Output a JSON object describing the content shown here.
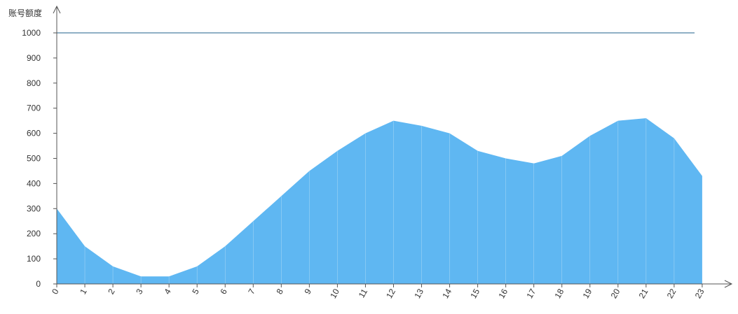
{
  "chart_data": {
    "type": "area",
    "ylabel": "账号额度",
    "xlabel": "",
    "title": "",
    "x": [
      "0",
      "1",
      "2",
      "3",
      "4",
      "5",
      "6",
      "7",
      "8",
      "9",
      "10",
      "11",
      "12",
      "13",
      "14",
      "15",
      "16",
      "17",
      "18",
      "19",
      "20",
      "21",
      "22",
      "23"
    ],
    "series": [
      {
        "values": [
          300,
          150,
          70,
          30,
          30,
          70,
          150,
          250,
          350,
          450,
          530,
          600,
          650,
          630,
          600,
          530,
          500,
          480,
          510,
          590,
          650,
          660,
          580,
          430
        ]
      }
    ],
    "reference_line": {
      "value": 1000
    },
    "ylim": [
      0,
      1000
    ],
    "yticks": [
      "0",
      "100",
      "200",
      "300",
      "400",
      "500",
      "600",
      "700",
      "800",
      "900",
      "1000"
    ],
    "grid": false,
    "colors": {
      "area": "#5fb7f2",
      "reference_line": "#1f5f8b",
      "axis": "#555555",
      "divider": "#9fd3f5"
    }
  }
}
